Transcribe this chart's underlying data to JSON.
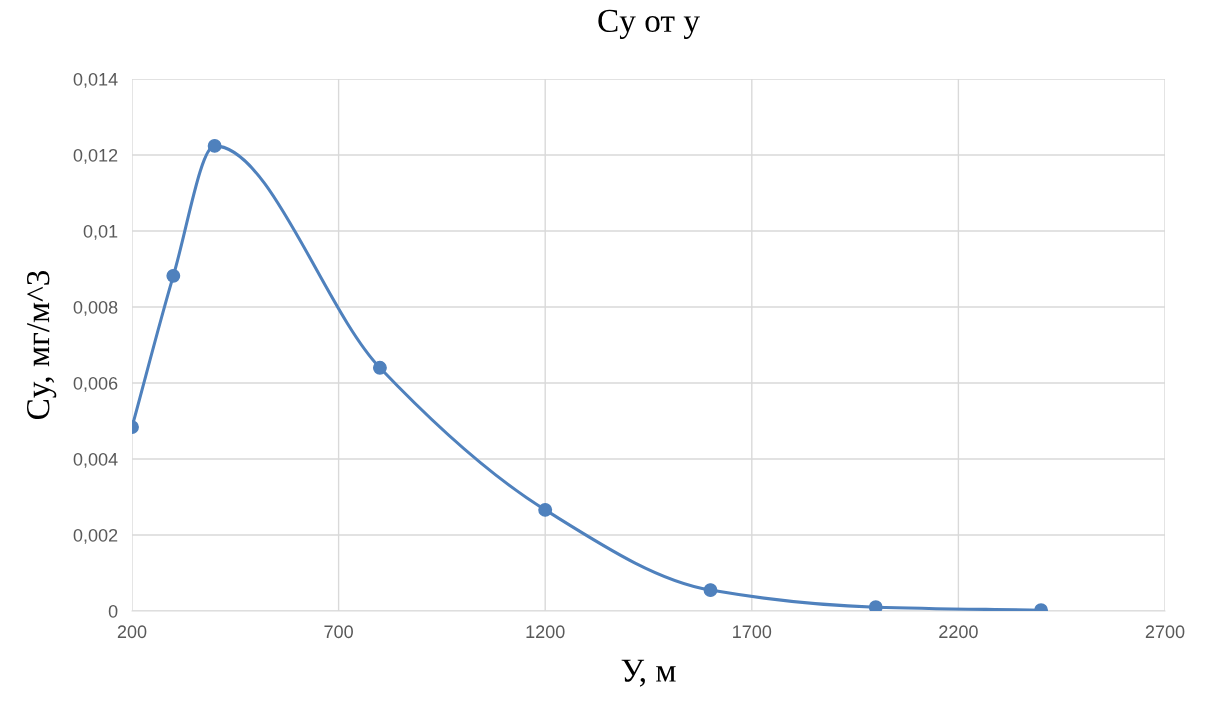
{
  "chart_data": {
    "type": "line",
    "title": "Cy от y",
    "xlabel": "У, м",
    "ylabel": "Cy, мг/м^3",
    "x": [
      200,
      300,
      400,
      800,
      1200,
      1600,
      2000,
      2400
    ],
    "series": [
      {
        "color": "#4f81bd",
        "values": [
          0.00484,
          0.00882,
          0.01224,
          0.0064,
          0.00266,
          0.00055,
          0.0001,
          2e-05
        ]
      }
    ],
    "xlim": [
      200,
      2700
    ],
    "xticks": [
      200,
      700,
      1200,
      1700,
      2200,
      2700
    ],
    "ylim": [
      0,
      0.014
    ],
    "yticks": [
      {
        "value": 0,
        "label": "0"
      },
      {
        "value": 0.002,
        "label": "0,002"
      },
      {
        "value": 0.004,
        "label": "0,004"
      },
      {
        "value": 0.006,
        "label": "0,006"
      },
      {
        "value": 0.008,
        "label": "0,008"
      },
      {
        "value": 0.01,
        "label": "0,01"
      },
      {
        "value": 0.012,
        "label": "0,012"
      },
      {
        "value": 0.014,
        "label": "0,014"
      }
    ],
    "grid": true,
    "marker": "circle",
    "line_style": "solid",
    "legend": false
  }
}
